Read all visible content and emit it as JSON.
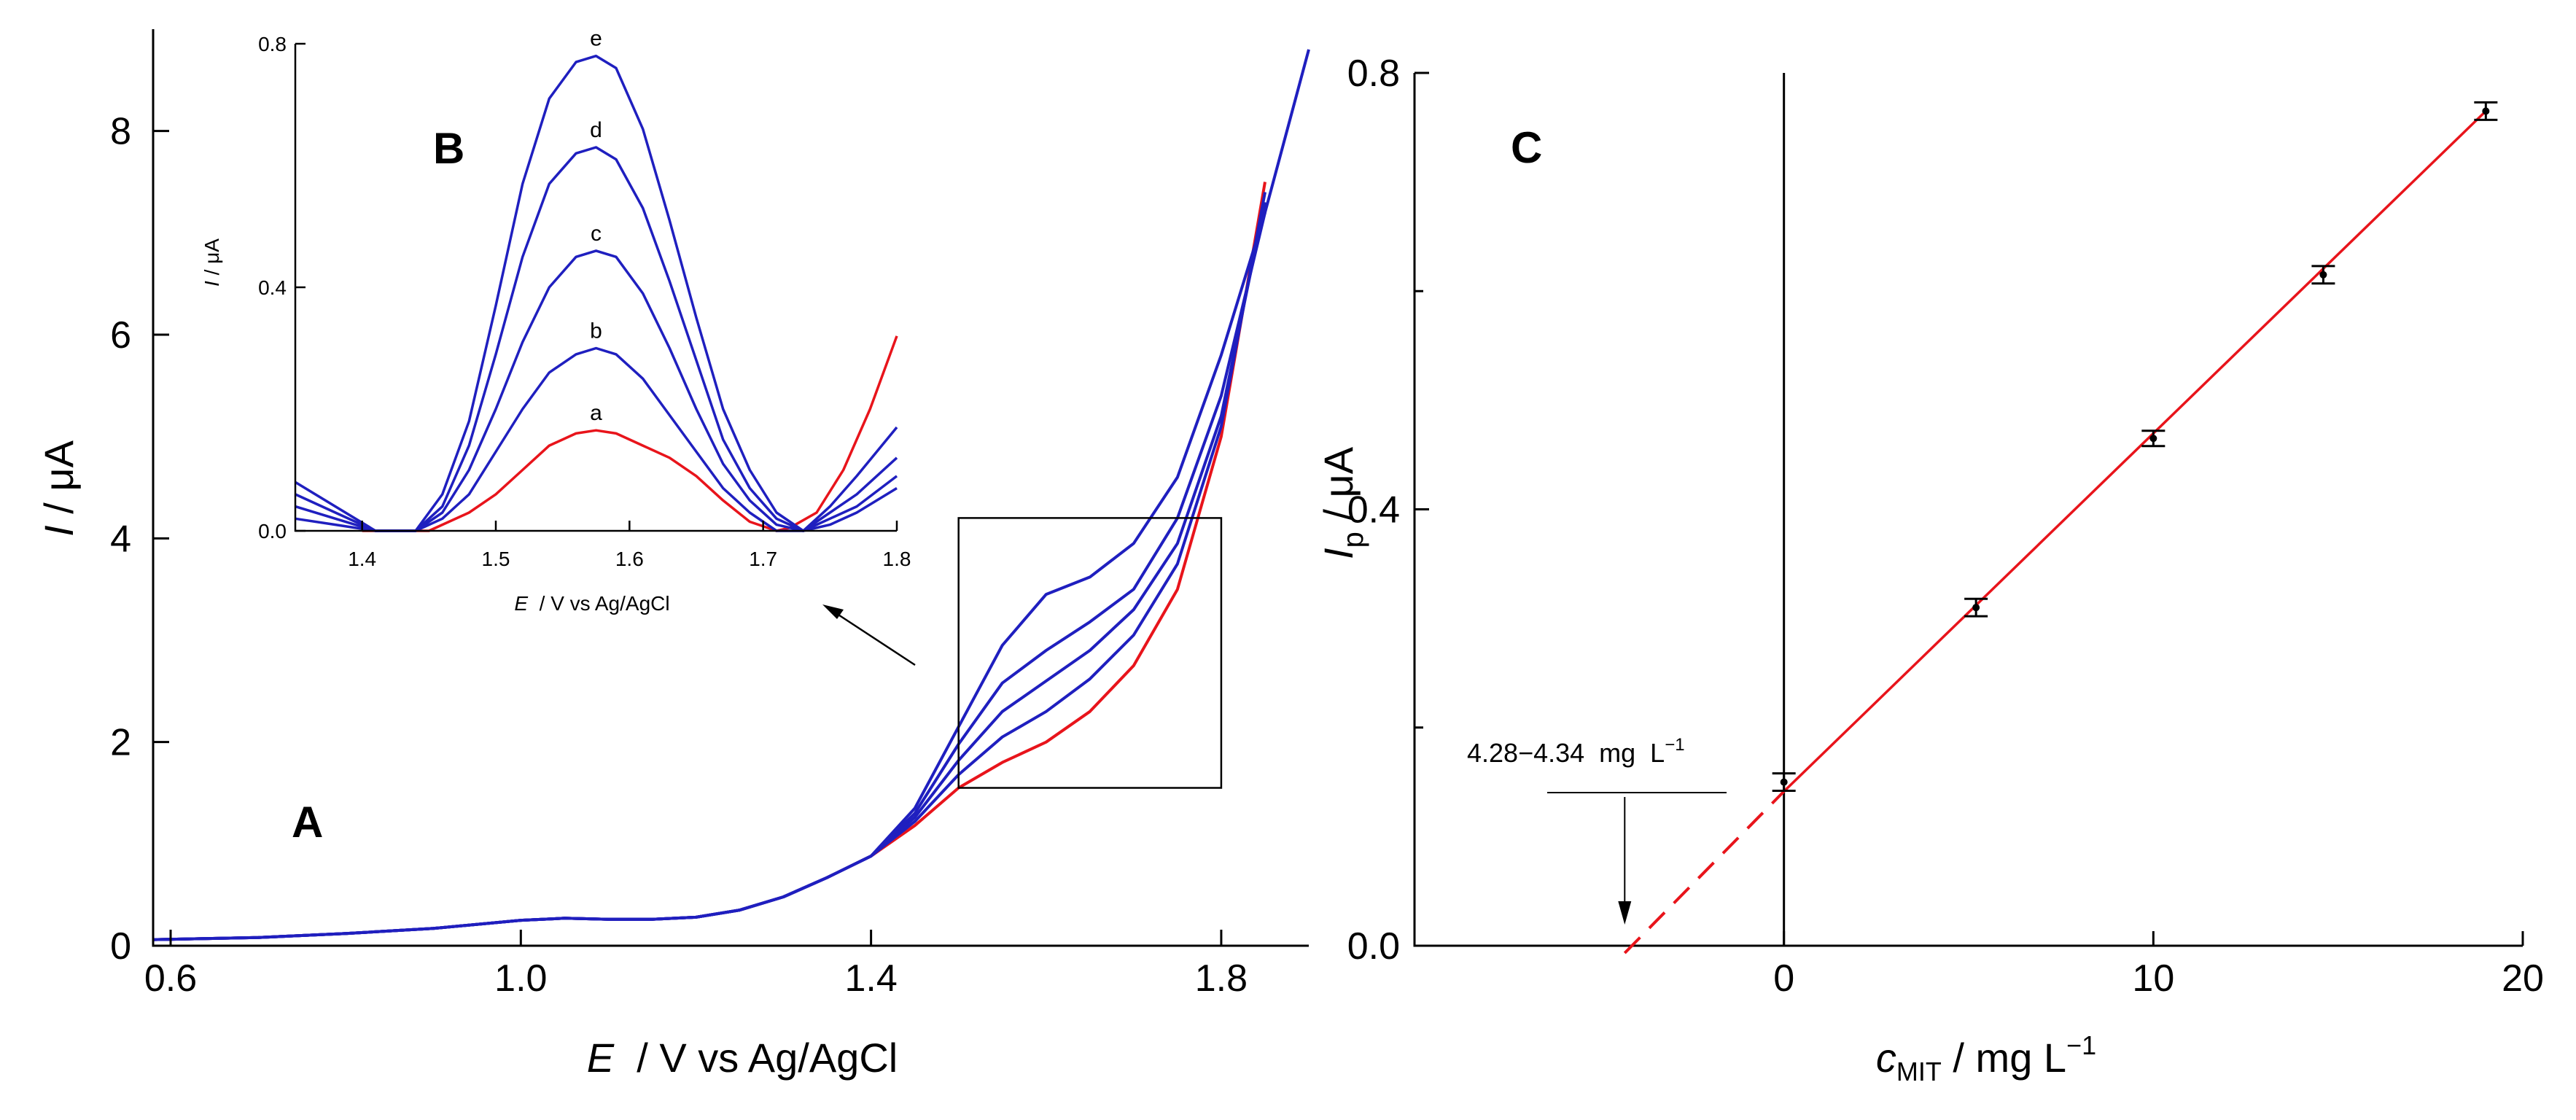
{
  "chart_data": [
    {
      "panel": "A",
      "type": "line",
      "xlabel": "E  / V vs Ag/AgCl",
      "xlabel_italic": "E",
      "xlabel_rest": "  / V vs Ag/AgCl",
      "ylabel_italic": "I",
      "ylabel_rest": " / μA",
      "xlim": [
        0.58,
        1.9
      ],
      "ylim": [
        0,
        9
      ],
      "xticks": [
        0.6,
        1.0,
        1.4,
        1.8
      ],
      "xtick_labels": [
        "0.6",
        "1.0",
        "1.4",
        "1.8"
      ],
      "yticks": [
        0,
        2,
        4,
        6,
        8
      ],
      "ytick_labels": [
        "0",
        "2",
        "4",
        "6",
        "8"
      ],
      "zoom_box": {
        "x": [
          1.5,
          1.8
        ],
        "y": [
          1.55,
          4.2
        ]
      },
      "series": [
        {
          "name": "a",
          "color": "#e8141b",
          "x": [
            0.58,
            0.7,
            0.8,
            0.9,
            1.0,
            1.05,
            1.1,
            1.15,
            1.2,
            1.25,
            1.3,
            1.35,
            1.4,
            1.45,
            1.5,
            1.55,
            1.6,
            1.65,
            1.7,
            1.75,
            1.8,
            1.85
          ],
          "y": [
            0.06,
            0.08,
            0.12,
            0.17,
            0.25,
            0.27,
            0.26,
            0.26,
            0.28,
            0.35,
            0.48,
            0.67,
            0.88,
            1.18,
            1.55,
            1.8,
            2.0,
            2.3,
            2.75,
            3.5,
            5.0,
            7.5
          ]
        },
        {
          "name": "b",
          "color": "#1f1fbf",
          "x": [
            0.58,
            0.7,
            0.8,
            0.9,
            1.0,
            1.05,
            1.1,
            1.15,
            1.2,
            1.25,
            1.3,
            1.35,
            1.4,
            1.45,
            1.5,
            1.55,
            1.6,
            1.65,
            1.7,
            1.75,
            1.8,
            1.85
          ],
          "y": [
            0.06,
            0.08,
            0.12,
            0.17,
            0.25,
            0.27,
            0.26,
            0.26,
            0.28,
            0.35,
            0.48,
            0.67,
            0.88,
            1.22,
            1.68,
            2.05,
            2.3,
            2.62,
            3.05,
            3.75,
            5.1,
            7.4
          ]
        },
        {
          "name": "c",
          "color": "#1f1fbf",
          "x": [
            0.58,
            0.7,
            0.8,
            0.9,
            1.0,
            1.05,
            1.1,
            1.15,
            1.2,
            1.25,
            1.3,
            1.35,
            1.4,
            1.45,
            1.5,
            1.55,
            1.6,
            1.65,
            1.7,
            1.75,
            1.8,
            1.85
          ],
          "y": [
            0.06,
            0.08,
            0.12,
            0.17,
            0.25,
            0.27,
            0.26,
            0.26,
            0.28,
            0.35,
            0.48,
            0.67,
            0.88,
            1.26,
            1.82,
            2.3,
            2.6,
            2.9,
            3.3,
            3.95,
            5.2,
            7.3
          ]
        },
        {
          "name": "d",
          "color": "#1f1fbf",
          "x": [
            0.58,
            0.7,
            0.8,
            0.9,
            1.0,
            1.05,
            1.1,
            1.15,
            1.2,
            1.25,
            1.3,
            1.35,
            1.4,
            1.45,
            1.5,
            1.55,
            1.6,
            1.65,
            1.7,
            1.75,
            1.8,
            1.85
          ],
          "y": [
            0.06,
            0.08,
            0.12,
            0.17,
            0.25,
            0.27,
            0.26,
            0.26,
            0.28,
            0.35,
            0.48,
            0.67,
            0.88,
            1.3,
            1.98,
            2.58,
            2.9,
            3.18,
            3.5,
            4.2,
            5.4,
            7.2
          ]
        },
        {
          "name": "e",
          "color": "#1f1fbf",
          "x": [
            0.58,
            0.7,
            0.8,
            0.9,
            1.0,
            1.05,
            1.1,
            1.15,
            1.2,
            1.25,
            1.3,
            1.35,
            1.4,
            1.45,
            1.5,
            1.55,
            1.6,
            1.65,
            1.7,
            1.75,
            1.8,
            1.85,
            1.9
          ],
          "y": [
            0.06,
            0.08,
            0.12,
            0.17,
            0.25,
            0.27,
            0.26,
            0.26,
            0.28,
            0.35,
            0.48,
            0.67,
            0.88,
            1.35,
            2.15,
            2.95,
            3.45,
            3.62,
            3.95,
            4.6,
            5.8,
            7.2,
            8.8
          ]
        }
      ]
    },
    {
      "panel": "B",
      "type": "line",
      "xlabel_italic": "E",
      "xlabel_rest": "  / V vs Ag/AgCl",
      "ylabel_italic": "I",
      "ylabel_rest": " / μA",
      "xlim": [
        1.35,
        1.8
      ],
      "ylim": [
        0,
        0.8
      ],
      "xticks": [
        1.4,
        1.5,
        1.6,
        1.7,
        1.8
      ],
      "xtick_labels": [
        "1.4",
        "1.5",
        "1.6",
        "1.7",
        "1.8"
      ],
      "yticks": [
        0,
        0.4,
        0.8
      ],
      "ytick_labels": [
        "0.0",
        "0.4",
        "0.8"
      ],
      "series": [
        {
          "name": "a",
          "color": "#e8141b",
          "x": [
            1.4,
            1.42,
            1.45,
            1.48,
            1.5,
            1.52,
            1.54,
            1.56,
            1.575,
            1.59,
            1.61,
            1.63,
            1.65,
            1.67,
            1.69,
            1.71,
            1.72,
            1.74,
            1.76,
            1.78,
            1.8
          ],
          "y": [
            0.0,
            0.0,
            0.0,
            0.03,
            0.06,
            0.1,
            0.14,
            0.16,
            0.165,
            0.16,
            0.14,
            0.12,
            0.09,
            0.05,
            0.015,
            0.0,
            0.005,
            0.03,
            0.1,
            0.2,
            0.32
          ]
        },
        {
          "name": "b",
          "color": "#1f1fbf",
          "x": [
            1.35,
            1.38,
            1.41,
            1.44,
            1.46,
            1.48,
            1.5,
            1.52,
            1.54,
            1.56,
            1.575,
            1.59,
            1.61,
            1.63,
            1.65,
            1.67,
            1.69,
            1.71,
            1.73,
            1.75,
            1.77,
            1.8
          ],
          "y": [
            0.02,
            0.01,
            0.0,
            0.0,
            0.02,
            0.06,
            0.13,
            0.2,
            0.26,
            0.29,
            0.3,
            0.29,
            0.25,
            0.19,
            0.13,
            0.07,
            0.03,
            0.0,
            0.0,
            0.01,
            0.03,
            0.07
          ]
        },
        {
          "name": "c",
          "color": "#1f1fbf",
          "x": [
            1.35,
            1.38,
            1.41,
            1.44,
            1.46,
            1.48,
            1.5,
            1.52,
            1.54,
            1.56,
            1.575,
            1.59,
            1.61,
            1.63,
            1.65,
            1.67,
            1.69,
            1.71,
            1.73,
            1.75,
            1.77,
            1.8
          ],
          "y": [
            0.04,
            0.02,
            0.0,
            0.0,
            0.03,
            0.1,
            0.2,
            0.31,
            0.4,
            0.45,
            0.46,
            0.45,
            0.39,
            0.3,
            0.2,
            0.11,
            0.05,
            0.01,
            0.0,
            0.02,
            0.04,
            0.09
          ]
        },
        {
          "name": "d",
          "color": "#1f1fbf",
          "x": [
            1.35,
            1.38,
            1.41,
            1.44,
            1.46,
            1.48,
            1.5,
            1.52,
            1.54,
            1.56,
            1.575,
            1.59,
            1.61,
            1.63,
            1.65,
            1.67,
            1.69,
            1.71,
            1.73,
            1.75,
            1.77,
            1.8
          ],
          "y": [
            0.06,
            0.03,
            0.0,
            0.0,
            0.04,
            0.14,
            0.29,
            0.45,
            0.57,
            0.62,
            0.63,
            0.61,
            0.53,
            0.41,
            0.28,
            0.15,
            0.07,
            0.02,
            0.0,
            0.03,
            0.06,
            0.12
          ]
        },
        {
          "name": "e",
          "color": "#1f1fbf",
          "x": [
            1.35,
            1.38,
            1.41,
            1.44,
            1.46,
            1.48,
            1.5,
            1.52,
            1.54,
            1.56,
            1.575,
            1.59,
            1.61,
            1.63,
            1.65,
            1.67,
            1.69,
            1.71,
            1.73,
            1.75,
            1.77,
            1.8
          ],
          "y": [
            0.08,
            0.04,
            0.0,
            0.0,
            0.06,
            0.18,
            0.37,
            0.57,
            0.71,
            0.77,
            0.78,
            0.76,
            0.66,
            0.51,
            0.35,
            0.2,
            0.1,
            0.03,
            0.0,
            0.04,
            0.09,
            0.17
          ]
        }
      ],
      "curve_labels": [
        {
          "text": "a",
          "x": 1.575,
          "y": 0.165
        },
        {
          "text": "b",
          "x": 1.575,
          "y": 0.3
        },
        {
          "text": "c",
          "x": 1.575,
          "y": 0.46
        },
        {
          "text": "d",
          "x": 1.575,
          "y": 0.63
        },
        {
          "text": "e",
          "x": 1.575,
          "y": 0.78
        }
      ]
    },
    {
      "panel": "C",
      "type": "scatter",
      "xlabel_italic": "c",
      "xlabel_sub": "MIT",
      "xlabel_rest": " / mg L",
      "xlabel_sup": "−1",
      "ylabel_italic": "I",
      "ylabel_sub": "p",
      "ylabel_rest": " / μA",
      "xlim": [
        -10,
        20
      ],
      "ylim": [
        0,
        0.8
      ],
      "xticks": [
        0,
        10,
        20
      ],
      "xtick_labels": [
        "0",
        "10",
        "20"
      ],
      "yticks": [
        0,
        0.4,
        0.8
      ],
      "ytick_labels": [
        "0.0",
        "0.4",
        "0.8"
      ],
      "points": [
        {
          "x": 0,
          "y": 0.15,
          "err": 0.008
        },
        {
          "x": 5.2,
          "y": 0.31,
          "err": 0.008
        },
        {
          "x": 10,
          "y": 0.465,
          "err": 0.007
        },
        {
          "x": 14.6,
          "y": 0.615,
          "err": 0.008
        },
        {
          "x": 19,
          "y": 0.765,
          "err": 0.008
        }
      ],
      "fit": {
        "x_start": -4.31,
        "x_end": 19,
        "y_start": 0.0,
        "y_end": 0.765,
        "color": "#e8141b"
      },
      "extrapolation": {
        "x_start": -4.31,
        "x_end": 0
      },
      "annotation": {
        "text": "4.28−4.34  mg  L",
        "sup": "−1",
        "arrow_x": -4.31
      }
    }
  ],
  "labels": {
    "A": "A",
    "B": "B",
    "C": "C"
  }
}
